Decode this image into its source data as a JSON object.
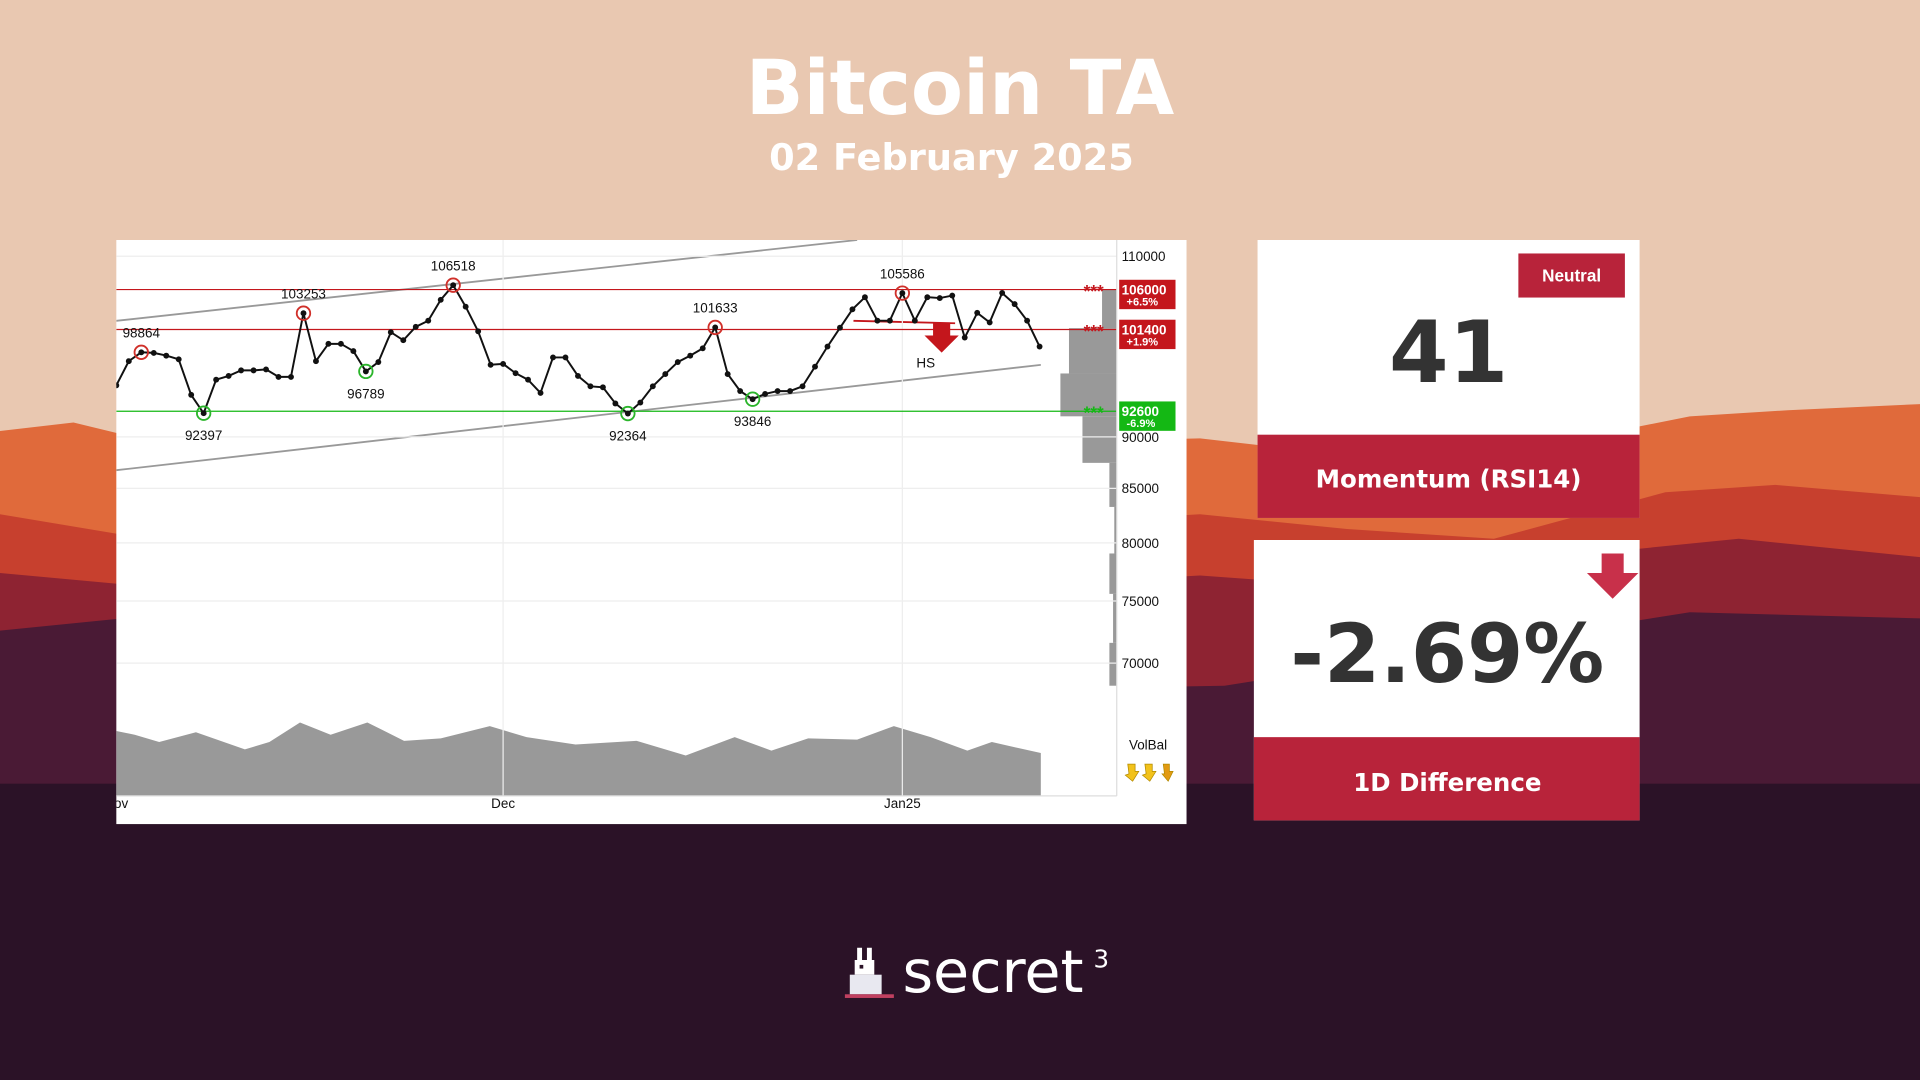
{
  "header": {
    "title": "Bitcoin TA",
    "date": "02 February 2025"
  },
  "chart_data": {
    "type": "line",
    "categories": [
      "Nov",
      null,
      null,
      null,
      null,
      null,
      null,
      null,
      null,
      null,
      null,
      null,
      null,
      null,
      null,
      null,
      null,
      null,
      null,
      null,
      null,
      null,
      null,
      null,
      null,
      null,
      null,
      null,
      null,
      null,
      null,
      "Dec",
      null,
      null,
      null,
      null,
      null,
      null,
      null,
      null,
      null,
      null,
      null,
      null,
      null,
      null,
      null,
      null,
      null,
      null,
      null,
      null,
      null,
      null,
      null,
      null,
      null,
      null,
      null,
      null,
      null,
      null,
      null,
      "Jan25",
      null,
      null,
      null,
      null,
      null,
      null,
      null,
      null,
      null,
      null,
      null
    ],
    "values": [
      95300,
      97900,
      98864,
      98800,
      98500,
      98100,
      94300,
      92397,
      95900,
      96300,
      96900,
      96900,
      97000,
      96200,
      96200,
      103253,
      97900,
      99800,
      99800,
      99000,
      96789,
      97800,
      101100,
      100200,
      101700,
      102400,
      104800,
      106518,
      104000,
      101200,
      97500,
      97600,
      96600,
      95900,
      94500,
      98300,
      98300,
      96300,
      95200,
      95100,
      93400,
      92364,
      93500,
      95200,
      96500,
      97800,
      98500,
      99300,
      101633,
      96500,
      94700,
      93846,
      94400,
      94700,
      94700,
      95200,
      97300,
      99500,
      101600,
      103700,
      105100,
      102400,
      102400,
      105586,
      102400,
      105100,
      105000,
      105300,
      100500,
      103300,
      102200,
      105600,
      104300,
      102400,
      99500
    ],
    "color": "#111111",
    "peaks": [
      2,
      15,
      27,
      48,
      63
    ],
    "troughs": [
      7,
      20,
      41,
      51
    ],
    "peak_color": "#d0302a",
    "trough_color": "#2bb52b",
    "log_y": true,
    "ylim": [
      60400,
      112000
    ],
    "yticks": [
      110000,
      90000,
      85000,
      80000,
      75000,
      70000
    ],
    "grid": true,
    "levels": [
      {
        "value": 106000,
        "change": "+6.5%",
        "color": "#c4161c"
      },
      {
        "value": 101400,
        "change": "+1.9%",
        "color": "#c4161c"
      },
      {
        "value": 92600,
        "change": "-6.9%",
        "color": "#14b814"
      }
    ],
    "level_marker": "***",
    "annotation": "HS",
    "volume_label": "VolBal"
  },
  "cards": [
    {
      "badge": "Neutral",
      "value": 41,
      "label": "Momentum (RSI14)"
    },
    {
      "value": "-2.69%",
      "label": "1D Difference"
    }
  ],
  "logo": {
    "text": "secret",
    "superscript": "3"
  }
}
